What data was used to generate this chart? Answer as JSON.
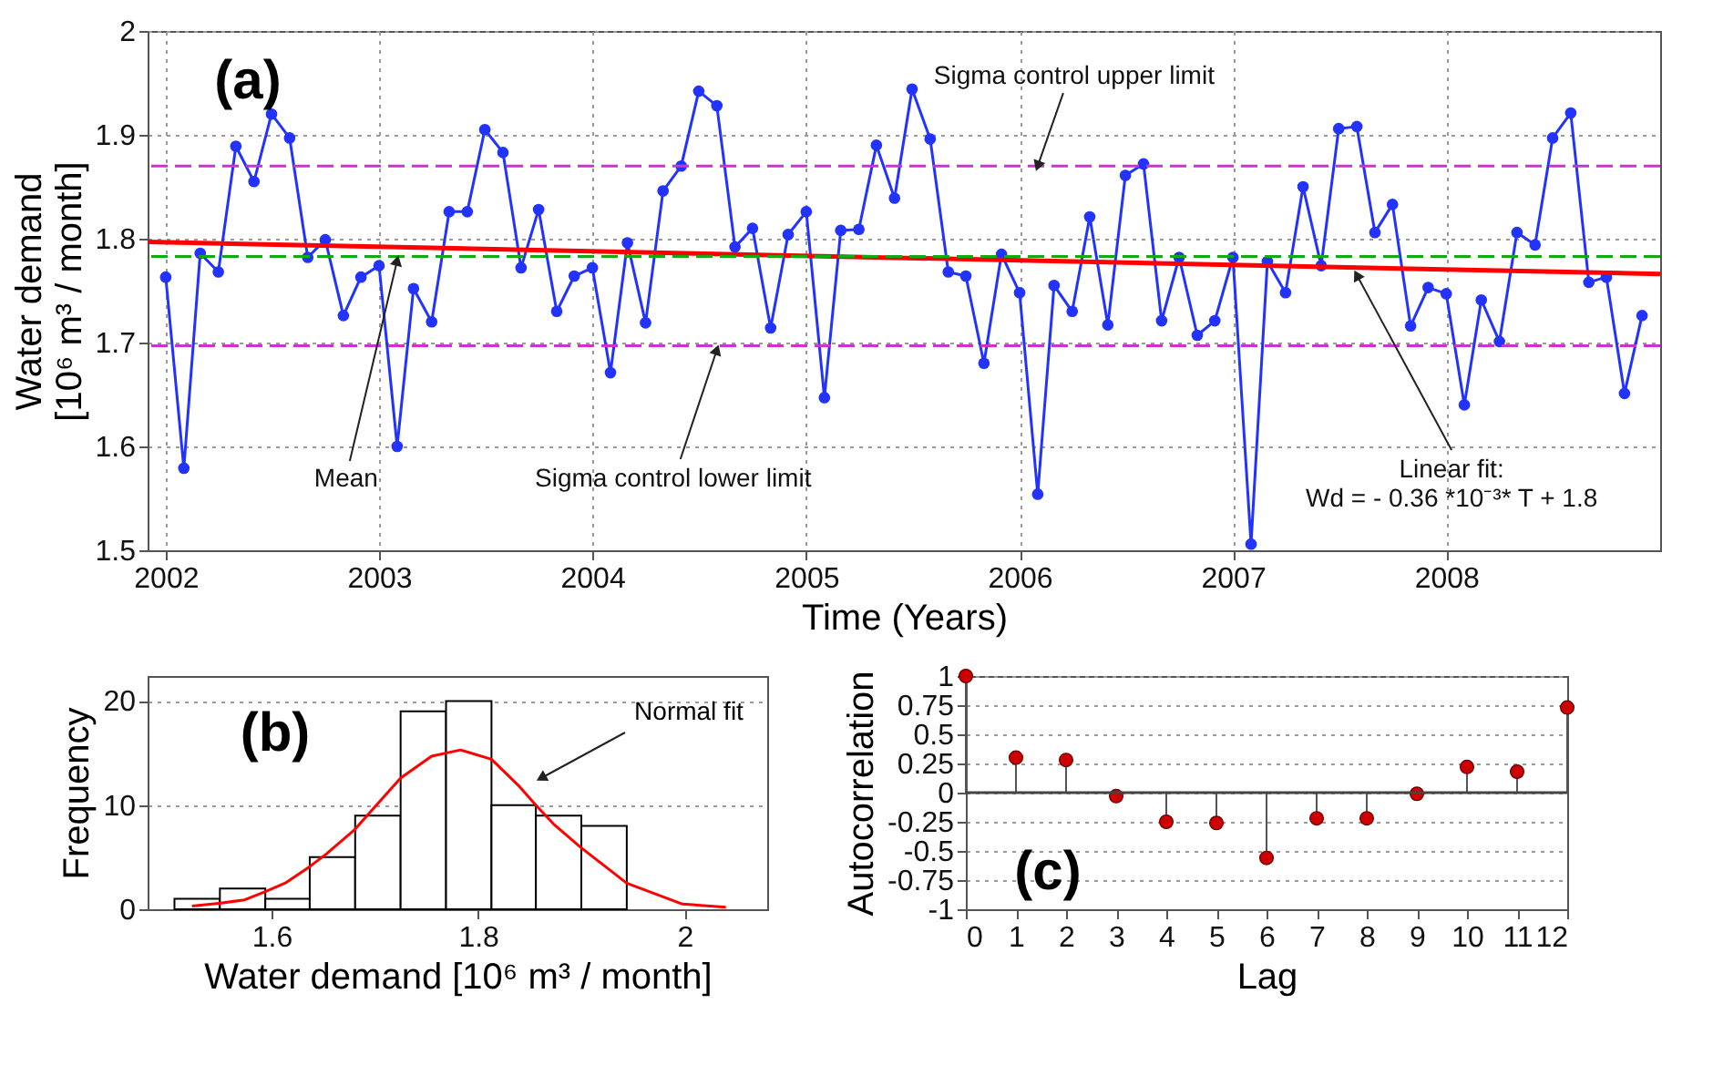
{
  "chart_data": [
    {
      "type": "line",
      "xlabel": "Time (Years)",
      "ylabel": "Water demand\n[10⁶ m³ / month]",
      "x": [
        "2002-01",
        "2002-02",
        "2002-03",
        "2002-04",
        "2002-05",
        "2002-06",
        "2002-07",
        "2002-08",
        "2002-09",
        "2002-10",
        "2002-11",
        "2002-12",
        "2003-01",
        "2003-02",
        "2003-03",
        "2003-04",
        "2003-05",
        "2003-06",
        "2003-07",
        "2003-08",
        "2003-09",
        "2003-10",
        "2003-11",
        "2003-12",
        "2004-01",
        "2004-02",
        "2004-03",
        "2004-04",
        "2004-05",
        "2004-06",
        "2004-07",
        "2004-08",
        "2004-09",
        "2004-10",
        "2004-11",
        "2004-12",
        "2005-01",
        "2005-02",
        "2005-03",
        "2005-04",
        "2005-05",
        "2005-06",
        "2005-07",
        "2005-08",
        "2005-09",
        "2005-10",
        "2005-11",
        "2005-12",
        "2006-01",
        "2006-02",
        "2006-03",
        "2006-04",
        "2006-05",
        "2006-06",
        "2006-07",
        "2006-08",
        "2006-09",
        "2006-10",
        "2006-11",
        "2006-12",
        "2007-01",
        "2007-02",
        "2007-03",
        "2007-04",
        "2007-05",
        "2007-06",
        "2007-07",
        "2007-08",
        "2007-09",
        "2007-10",
        "2007-11",
        "2007-12",
        "2008-01",
        "2008-02",
        "2008-03",
        "2008-04",
        "2008-05",
        "2008-06",
        "2008-07",
        "2008-08",
        "2008-09",
        "2008-10",
        "2008-11",
        "2008-12"
      ],
      "series": [
        {
          "color": "#2233ff",
          "marker": "circle",
          "values": [
            1.763,
            1.579,
            1.786,
            1.768,
            1.889,
            1.855,
            1.92,
            1.897,
            1.782,
            1.799,
            1.726,
            1.763,
            1.774,
            1.6,
            1.752,
            1.72,
            1.826,
            1.826,
            1.905,
            1.883,
            1.772,
            1.828,
            1.73,
            1.764,
            1.772,
            1.671,
            1.796,
            1.719,
            1.846,
            1.87,
            1.942,
            1.928,
            1.792,
            1.81,
            1.714,
            1.804,
            1.826,
            1.647,
            1.808,
            1.809,
            1.89,
            1.839,
            1.944,
            1.896,
            1.768,
            1.764,
            1.68,
            1.785,
            1.748,
            1.554,
            1.755,
            1.73,
            1.821,
            1.717,
            1.861,
            1.872,
            1.721,
            1.782,
            1.707,
            1.721,
            1.782,
            1.506,
            1.778,
            1.748,
            1.85,
            1.774,
            1.906,
            1.908,
            1.806,
            1.833,
            1.716,
            1.753,
            1.747,
            1.64,
            1.741,
            1.701,
            1.806,
            1.794,
            1.897,
            1.921,
            1.758,
            1.763,
            1.651,
            1.726
          ]
        },
        {
          "type": "line",
          "marker": "none",
          "color": "#ff0000",
          "x": [
            "2001-12",
            "2009-01"
          ],
          "values": [
            1.797,
            1.766
          ]
        }
      ],
      "xlim": [
        "2001-12",
        "2009-01"
      ],
      "xticks": [
        "2002",
        "2003",
        "2004",
        "2005",
        "2006",
        "2007",
        "2008"
      ],
      "ylim": [
        1.5,
        2
      ],
      "yticks": [
        1.5,
        1.6,
        1.7,
        1.8,
        1.9,
        2
      ],
      "grid": true,
      "ref_lines": [
        {
          "axis": "y",
          "value": 1.87,
          "color": "#cc33cc",
          "line_style": "dashed"
        },
        {
          "axis": "y",
          "value": 1.697,
          "color": "#cc33cc",
          "line_style": "dashed"
        },
        {
          "axis": "y",
          "value": 1.783,
          "color": "#11aa11",
          "line_style": "dashed"
        }
      ],
      "annotations": [
        "(a)",
        {
          "text": "Sigma control upper limit",
          "x": "2006-02",
          "y": 1.87
        },
        {
          "text": "Mean",
          "x": "2003-02",
          "y": 1.779
        },
        {
          "text": "Sigma control lower limit",
          "x": "2004-08",
          "y": 1.693
        },
        {
          "text": "Linear fit:\nWd = - 0.36 *10⁻³* T  +  1.8",
          "x": "2007-08",
          "y": 1.765
        }
      ]
    },
    {
      "type": "histogram",
      "xlabel": "Water demand [10⁶ m³ / month]",
      "ylabel": "Frequency",
      "series": [
        {
          "color": "#ffffff",
          "bins": [
            1.506,
            1.55,
            1.594,
            1.637,
            1.681,
            1.725,
            1.769,
            1.813,
            1.856,
            1.9,
            1.944
          ],
          "values": [
            1,
            2,
            1,
            5,
            9,
            19,
            20,
            10,
            9,
            8
          ]
        },
        {
          "type": "line",
          "marker": "none",
          "color": "#ff0000",
          "x": [
            1.523,
            1.551,
            1.574,
            1.594,
            1.613,
            1.637,
            1.653,
            1.68,
            1.698,
            1.725,
            1.755,
            1.783,
            1.813,
            1.84,
            1.856,
            1.873,
            1.9,
            1.944,
            1.998,
            2.04
          ],
          "values": [
            0.3,
            0.6,
            0.9,
            1.7,
            2.5,
            4.1,
            5.3,
            7.6,
            9.6,
            12.6,
            14.7,
            15.3,
            14.4,
            11.8,
            10,
            8.2,
            5.9,
            2.5,
            0.5,
            0.2
          ]
        }
      ],
      "xlim": [
        1.48,
        2.08
      ],
      "xticks": [
        1.6,
        1.8,
        2
      ],
      "ylim": [
        0,
        22.4
      ],
      "yticks": [
        0,
        10,
        20
      ],
      "grid": "y",
      "annotations": [
        "(b)",
        "Normal fit"
      ]
    },
    {
      "type": "lollipop",
      "xlabel": "Lag",
      "ylabel": "Autocorrelation",
      "color": "#cc0000",
      "marker": "circle",
      "x": [
        0,
        1,
        2,
        3,
        4,
        5,
        6,
        7,
        8,
        9,
        10,
        11,
        12
      ],
      "values": [
        1,
        0.3,
        0.28,
        -0.03,
        -0.25,
        -0.26,
        -0.56,
        -0.22,
        -0.22,
        -0.01,
        0.22,
        0.18,
        0.73
      ],
      "xlim": [
        0,
        12
      ],
      "xticks": [
        0,
        1,
        2,
        3,
        4,
        5,
        6,
        7,
        8,
        9,
        10,
        11,
        12
      ],
      "ylim": [
        -1,
        1
      ],
      "yticks": [
        -1,
        -0.75,
        -0.5,
        -0.25,
        0,
        0.25,
        0.5,
        0.75,
        1
      ],
      "grid": "y",
      "ref_lines": [
        {
          "axis": "y",
          "value": 0,
          "color": "#444444",
          "line_style": "solid"
        }
      ],
      "annotations": [
        "(c)"
      ]
    }
  ]
}
